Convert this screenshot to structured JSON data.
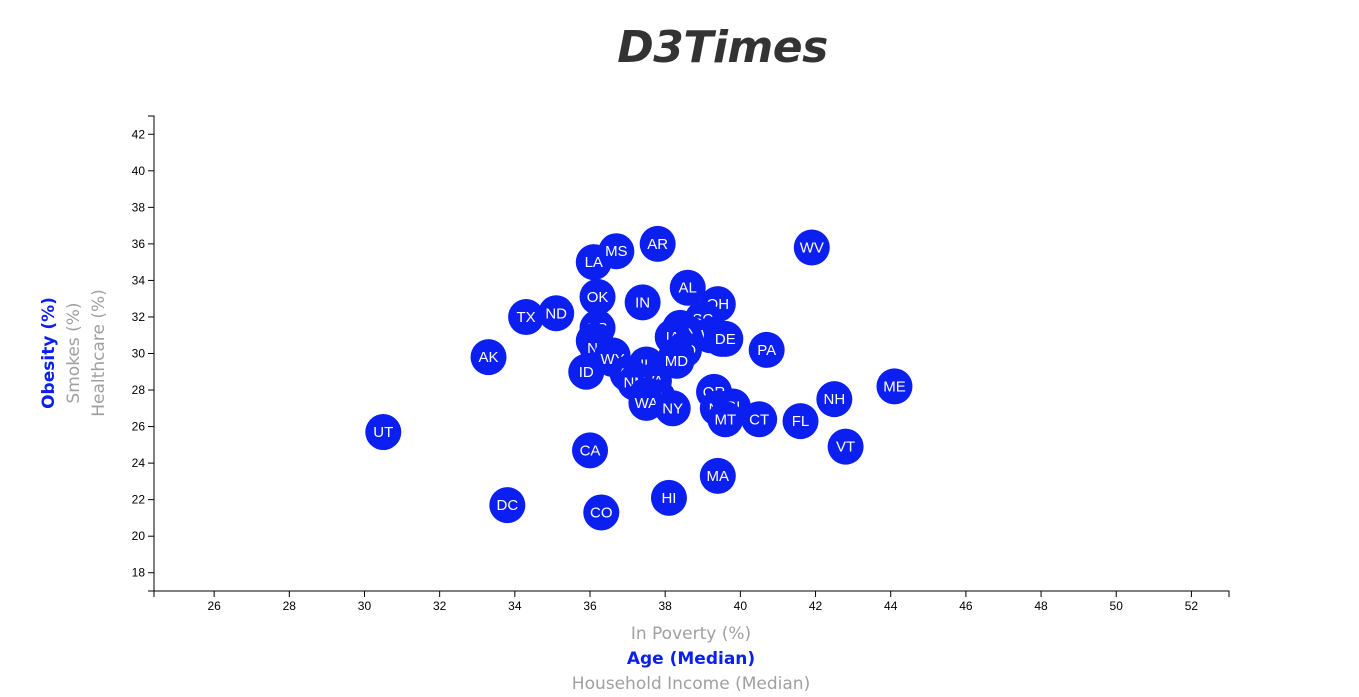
{
  "page": {
    "title": "D3Times"
  },
  "colors": {
    "marker": "#0a1ff0",
    "active_label": "#0a1ff0",
    "inactive_label": "#a0a0a0"
  },
  "chart_data": {
    "type": "scatter",
    "title": "D3Times",
    "x_axis_options": [
      "In Poverty (%)",
      "Age (Median)",
      "Household Income (Median)"
    ],
    "x_axis_active": "Age (Median)",
    "y_axis_options": [
      "Obesity (%)",
      "Smokes (%)",
      "Healthcare (%)"
    ],
    "y_axis_active": "Obesity (%)",
    "xlim": [
      24.4,
      53
    ],
    "ylim": [
      17,
      43
    ],
    "x_ticks": [
      26,
      28,
      30,
      32,
      34,
      36,
      38,
      40,
      42,
      44,
      46,
      48,
      50,
      52
    ],
    "y_ticks": [
      18,
      20,
      22,
      24,
      26,
      28,
      30,
      32,
      34,
      36,
      38,
      40,
      42
    ],
    "points": [
      {
        "label": "UT",
        "x": 30.5,
        "y": 25.7
      },
      {
        "label": "DC",
        "x": 33.8,
        "y": 21.7
      },
      {
        "label": "AK",
        "x": 33.3,
        "y": 29.8
      },
      {
        "label": "TX",
        "x": 34.3,
        "y": 32.0
      },
      {
        "label": "ND",
        "x": 35.1,
        "y": 32.2
      },
      {
        "label": "LA",
        "x": 36.1,
        "y": 35.0
      },
      {
        "label": "MS",
        "x": 36.7,
        "y": 35.6
      },
      {
        "label": "AR",
        "x": 37.8,
        "y": 36.0
      },
      {
        "label": "WV",
        "x": 41.9,
        "y": 35.8
      },
      {
        "label": "OK",
        "x": 36.2,
        "y": 33.1
      },
      {
        "label": "IN",
        "x": 37.4,
        "y": 32.8
      },
      {
        "label": "AL",
        "x": 38.6,
        "y": 33.6
      },
      {
        "label": "OH",
        "x": 39.4,
        "y": 32.7
      },
      {
        "label": "SC",
        "x": 39.0,
        "y": 31.9
      },
      {
        "label": "KY",
        "x": 38.4,
        "y": 31.4
      },
      {
        "label": "TN",
        "x": 38.6,
        "y": 31.1
      },
      {
        "label": "WI",
        "x": 39.2,
        "y": 31.0
      },
      {
        "label": "MI",
        "x": 39.5,
        "y": 30.8
      },
      {
        "label": "DE",
        "x": 39.6,
        "y": 30.8
      },
      {
        "label": "IA",
        "x": 38.2,
        "y": 30.9
      },
      {
        "label": "KS",
        "x": 36.2,
        "y": 31.4
      },
      {
        "label": "GA",
        "x": 36.1,
        "y": 30.7
      },
      {
        "label": "NE",
        "x": 36.2,
        "y": 30.3
      },
      {
        "label": "SD",
        "x": 36.6,
        "y": 29.9
      },
      {
        "label": "WY",
        "x": 36.6,
        "y": 29.7
      },
      {
        "label": "PA",
        "x": 40.7,
        "y": 30.2
      },
      {
        "label": "MO",
        "x": 38.5,
        "y": 30.2
      },
      {
        "label": "NC",
        "x": 38.3,
        "y": 29.9
      },
      {
        "label": "MD",
        "x": 38.3,
        "y": 29.6
      },
      {
        "label": "IL",
        "x": 37.5,
        "y": 29.4
      },
      {
        "label": "AZ",
        "x": 37.0,
        "y": 28.9
      },
      {
        "label": "VA",
        "x": 37.7,
        "y": 28.5
      },
      {
        "label": "NM",
        "x": 37.2,
        "y": 28.4
      },
      {
        "label": "NV",
        "x": 37.5,
        "y": 27.7
      },
      {
        "label": "MN",
        "x": 37.8,
        "y": 27.6
      },
      {
        "label": "WA",
        "x": 37.5,
        "y": 27.3
      },
      {
        "label": "NY",
        "x": 38.2,
        "y": 27.0
      },
      {
        "label": "ID",
        "x": 35.9,
        "y": 29.0
      },
      {
        "label": "OR",
        "x": 39.3,
        "y": 27.9
      },
      {
        "label": "NJ",
        "x": 39.4,
        "y": 27.0
      },
      {
        "label": "RI",
        "x": 39.8,
        "y": 27.1
      },
      {
        "label": "MT",
        "x": 39.6,
        "y": 26.4
      },
      {
        "label": "CT",
        "x": 40.5,
        "y": 26.4
      },
      {
        "label": "FL",
        "x": 41.6,
        "y": 26.3
      },
      {
        "label": "NH",
        "x": 42.5,
        "y": 27.5
      },
      {
        "label": "ME",
        "x": 44.1,
        "y": 28.2
      },
      {
        "label": "VT",
        "x": 42.8,
        "y": 24.9
      },
      {
        "label": "CA",
        "x": 36.0,
        "y": 24.7
      },
      {
        "label": "MA",
        "x": 39.4,
        "y": 23.3
      },
      {
        "label": "HI",
        "x": 38.1,
        "y": 22.1
      },
      {
        "label": "CO",
        "x": 36.3,
        "y": 21.3
      }
    ]
  }
}
